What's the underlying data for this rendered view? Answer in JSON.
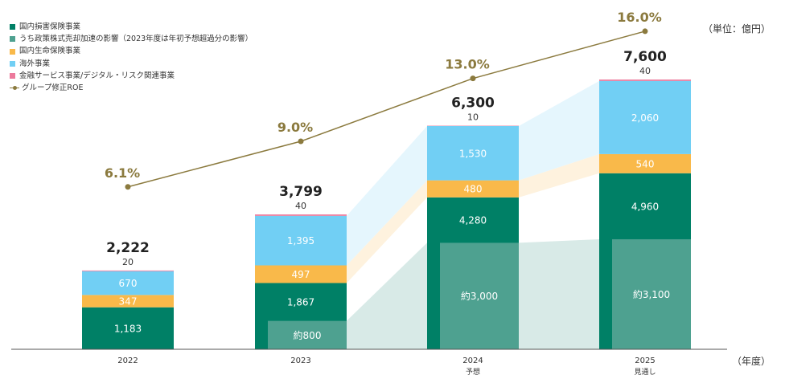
{
  "legend": [
    {
      "label": "国内損害保険事業",
      "color": "#008066"
    },
    {
      "label": "うち政策株式売却加速の影響（2023年度は年初予想超過分の影響）",
      "color": "#4ea190"
    },
    {
      "label": "国内生命保険事業",
      "color": "#f9b94a"
    },
    {
      "label": "海外事業",
      "color": "#71cff4"
    },
    {
      "label": "金融サービス事業/デジタル・リスク関連事業",
      "color": "#ec7a9c"
    },
    {
      "label": "グループ修正ROE",
      "color": "#8b7a3e"
    }
  ],
  "unit_label": "（単位：億円）",
  "x_unit_label": "（年度）",
  "chart_data": {
    "type": "bar",
    "stacked": true,
    "categories": [
      "2022",
      "2023",
      "2024",
      "2025"
    ],
    "category_sublabels": [
      "",
      "",
      "予想",
      "見通し"
    ],
    "series": [
      {
        "name": "国内損害保険事業",
        "values": [
          1183,
          1867,
          4280,
          4960
        ],
        "color": "#008066"
      },
      {
        "name": "国内生命保険事業",
        "values": [
          347,
          497,
          480,
          540
        ],
        "color": "#f9b94a"
      },
      {
        "name": "海外事業",
        "values": [
          670,
          1395,
          1530,
          2060
        ],
        "color": "#71cff4"
      },
      {
        "name": "金融サービス事業/デジタル・リスク関連事業",
        "values": [
          20,
          40,
          10,
          40
        ],
        "color": "#ec7a9c"
      }
    ],
    "subset": {
      "name": "うち政策株式売却加速の影響（2023年度は年初予想超過分の影響）",
      "values": [
        null,
        800,
        3000,
        3100
      ],
      "labels": [
        "",
        "約800",
        "約3,000",
        "約3,100"
      ],
      "color": "#4ea190"
    },
    "value_labels": [
      [
        "1,183",
        "1,867",
        "4,280",
        "4,960"
      ],
      [
        "347",
        "497",
        "480",
        "540"
      ],
      [
        "670",
        "1,395",
        "1,530",
        "2,060"
      ],
      [
        "20",
        "40",
        "10",
        "40"
      ]
    ],
    "totals": [
      2222,
      3799,
      6300,
      7600
    ],
    "total_labels": [
      "2,222",
      "3,799",
      "6,300",
      "7,600"
    ],
    "roe": {
      "name": "グループ修正ROE",
      "values": [
        6.1,
        9.0,
        13.0,
        16.0
      ],
      "labels": [
        "6.1%",
        "9.0%",
        "13.0%",
        "16.0%"
      ],
      "color": "#8b7a3e"
    },
    "ylim": [
      0,
      8000
    ]
  }
}
